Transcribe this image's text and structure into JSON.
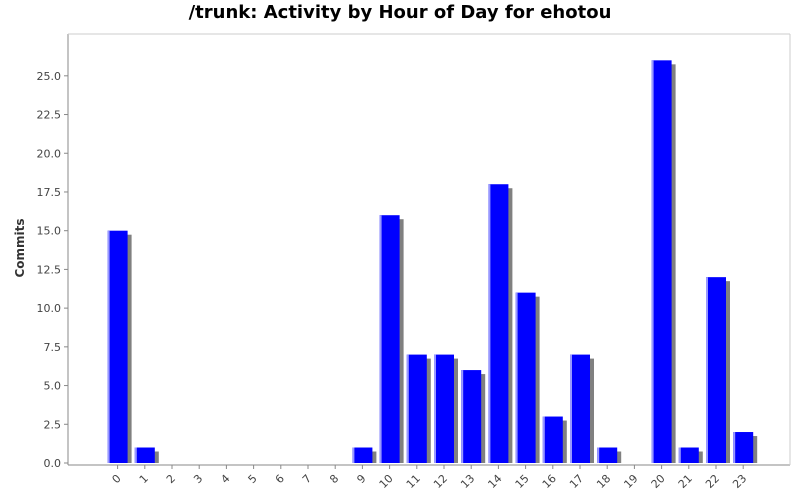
{
  "chart_data": {
    "type": "bar",
    "title": "/trunk: Activity by Hour of Day for ehotou",
    "xlabel": "",
    "ylabel": "Commits",
    "categories": [
      "0",
      "1",
      "2",
      "3",
      "4",
      "5",
      "6",
      "7",
      "8",
      "9",
      "10",
      "11",
      "12",
      "13",
      "14",
      "15",
      "16",
      "17",
      "18",
      "19",
      "20",
      "21",
      "22",
      "23"
    ],
    "values": [
      15,
      1,
      0,
      0,
      0,
      0,
      0,
      0,
      0,
      1,
      16,
      7,
      7,
      6,
      18,
      11,
      3,
      7,
      1,
      0,
      26,
      1,
      12,
      2
    ],
    "ylim": [
      0,
      27.7
    ],
    "yticks": [
      "0.0",
      "2.5",
      "5.0",
      "7.5",
      "10.0",
      "12.5",
      "15.0",
      "17.5",
      "20.0",
      "22.5",
      "25.0"
    ],
    "ytick_values": [
      0,
      2.5,
      5,
      7.5,
      10,
      12.5,
      15,
      17.5,
      20,
      22.5,
      25
    ],
    "grid": false,
    "legend": "none",
    "colors": {
      "bar": "#0000ff",
      "shadow": "#808080",
      "axis": "#888888"
    }
  }
}
